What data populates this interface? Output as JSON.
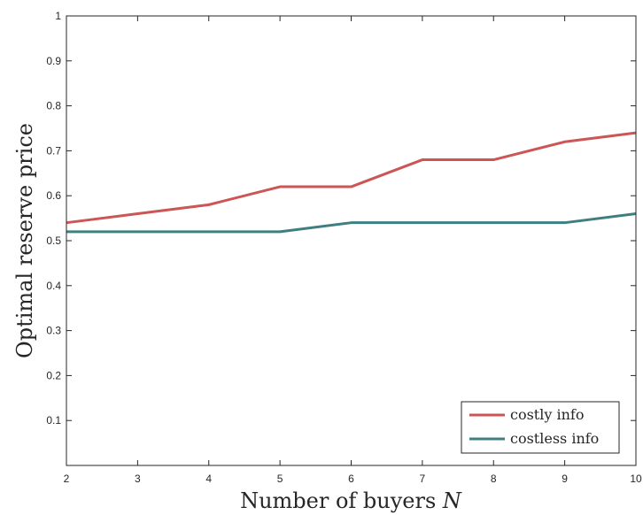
{
  "chart_data": {
    "type": "line",
    "title": "",
    "xlabel": "Number of buyers ",
    "xlabel_symbol": "N",
    "ylabel": "Optimal reserve price",
    "xlim": [
      2,
      10
    ],
    "ylim": [
      0,
      1
    ],
    "x_ticks": [
      "2",
      "3",
      "4",
      "5",
      "6",
      "7",
      "8",
      "9",
      "10"
    ],
    "y_ticks": [
      "0.1",
      "0.2",
      "0.3",
      "0.4",
      "0.5",
      "0.6",
      "0.7",
      "0.8",
      "0.9",
      "1"
    ],
    "x_tick_values": [
      2,
      3,
      4,
      5,
      6,
      7,
      8,
      9,
      10
    ],
    "y_tick_values": [
      0.1,
      0.2,
      0.3,
      0.4,
      0.5,
      0.6,
      0.7,
      0.8,
      0.9,
      1
    ],
    "x": [
      2,
      3,
      4,
      5,
      6,
      7,
      8,
      9,
      10
    ],
    "series": [
      {
        "name": "costly info",
        "color": "#cc5555",
        "values": [
          0.54,
          0.56,
          0.58,
          0.62,
          0.62,
          0.68,
          0.68,
          0.72,
          0.74
        ]
      },
      {
        "name": "costless info",
        "color": "#3f7f80",
        "values": [
          0.52,
          0.52,
          0.52,
          0.52,
          0.54,
          0.54,
          0.54,
          0.54,
          0.56
        ]
      }
    ],
    "legend_position": "bottom-right",
    "grid": false
  }
}
